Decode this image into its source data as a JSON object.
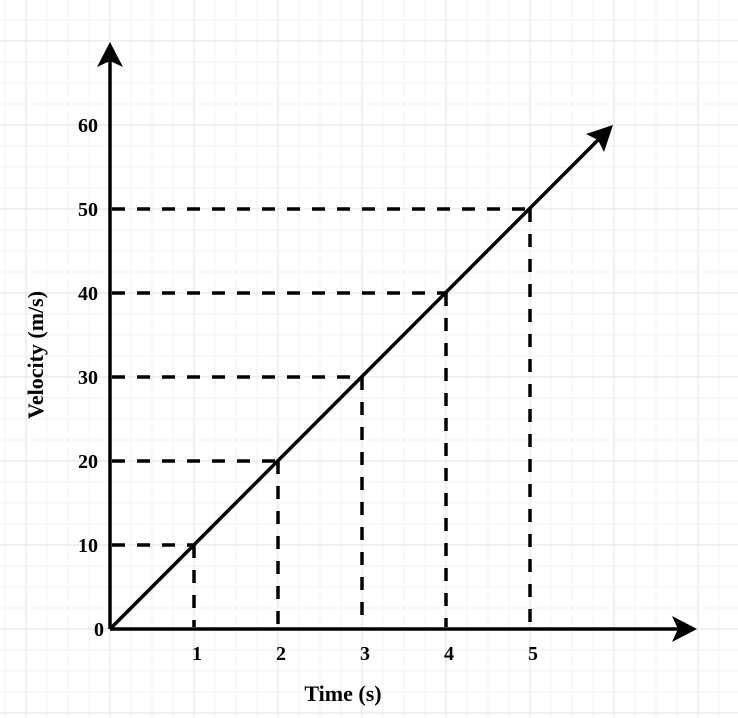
{
  "chart_data": {
    "type": "line",
    "title": "",
    "xlabel": "Time (s)",
    "ylabel": "Velocity (m/s)",
    "x_ticks": [
      "1",
      "2",
      "3",
      "4",
      "5"
    ],
    "y_ticks": [
      "0",
      "10",
      "20",
      "30",
      "40",
      "50",
      "60"
    ],
    "xlim": [
      0,
      7
    ],
    "ylim": [
      0,
      70
    ],
    "grid": true,
    "series": [
      {
        "name": "velocity",
        "x": [
          0,
          1,
          2,
          3,
          4,
          5,
          6
        ],
        "y": [
          0,
          10,
          20,
          30,
          40,
          50,
          60
        ]
      }
    ],
    "marked_points": [
      {
        "x": 1,
        "y": 10
      },
      {
        "x": 2,
        "y": 20
      },
      {
        "x": 3,
        "y": 30
      },
      {
        "x": 4,
        "y": 40
      },
      {
        "x": 5,
        "y": 50
      }
    ],
    "annotations": "dashed projection lines from each marked point to both axes; line extends with arrowhead beyond x=6"
  },
  "colors": {
    "line": "#000000",
    "grid_major": "#e0e0e0",
    "grid_minor": "#f3f3f3",
    "background": "#ffffff"
  }
}
